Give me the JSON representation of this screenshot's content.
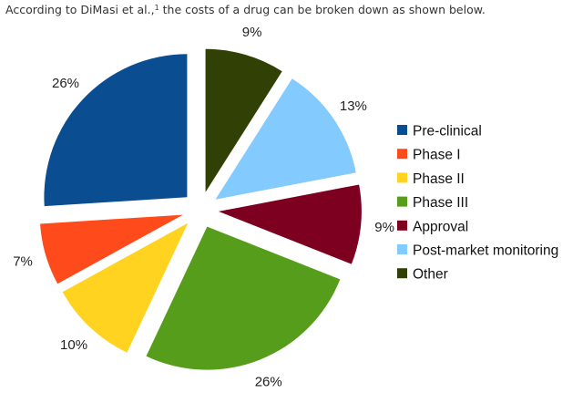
{
  "caption": {
    "before": "According to DiMasi et al.,",
    "footnote": "1",
    "after": " the costs of a drug can be broken down as shown below."
  },
  "chart_data": {
    "type": "pie",
    "exploded": true,
    "start_angle_deg": 0,
    "direction": "clockwise",
    "legend_position": "right",
    "slices": [
      {
        "name": "Pre-clinical",
        "value": 26,
        "label": "26%",
        "color": "#0a4d91"
      },
      {
        "name": "Phase I",
        "value": 7,
        "label": "7%",
        "color": "#ff4a1c"
      },
      {
        "name": "Phase II",
        "value": 10,
        "label": "10%",
        "color": "#ffd320"
      },
      {
        "name": "Phase III",
        "value": 26,
        "label": "26%",
        "color": "#579d1c"
      },
      {
        "name": "Approval",
        "value": 9,
        "label": "9%",
        "color": "#7e0021"
      },
      {
        "name": "Post-market monitoring",
        "value": 13,
        "label": "13%",
        "color": "#83caff"
      },
      {
        "name": "Other",
        "value": 9,
        "label": "9%",
        "color": "#314004"
      }
    ]
  }
}
